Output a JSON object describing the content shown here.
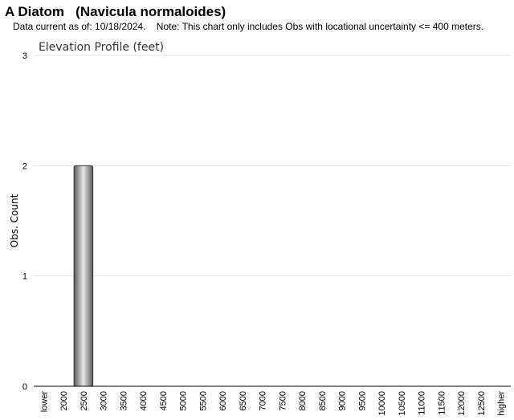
{
  "header": {
    "title": "A Diatom   (Navicula normaloides)",
    "subtitle": "Data current as of: 10/18/2024.    Note: This chart only includes Obs with locational uncertainty <= 400 meters."
  },
  "chart_data": {
    "type": "bar",
    "title": "Elevation Profile (feet)",
    "xlabel": "",
    "ylabel": "Obs. Count",
    "ylim": [
      0,
      3
    ],
    "yticks": [
      "0",
      "1",
      "2",
      "3"
    ],
    "grid": true,
    "categories": [
      "lower",
      "2000",
      "2500",
      "3000",
      "3500",
      "4000",
      "4500",
      "5000",
      "5500",
      "6000",
      "6500",
      "7000",
      "7500",
      "8000",
      "8500",
      "9000",
      "9500",
      "10000",
      "10500",
      "11000",
      "11500",
      "12000",
      "12500",
      "higher"
    ],
    "values": [
      0,
      0,
      2,
      0,
      0,
      0,
      0,
      0,
      0,
      0,
      0,
      0,
      0,
      0,
      0,
      0,
      0,
      0,
      0,
      0,
      0,
      0,
      0,
      0
    ],
    "colors": {
      "bar_dark": "#5a5a5a",
      "bar_light": "#e8e8e8",
      "grid": "#e4e4e4",
      "axis": "#000000"
    }
  }
}
